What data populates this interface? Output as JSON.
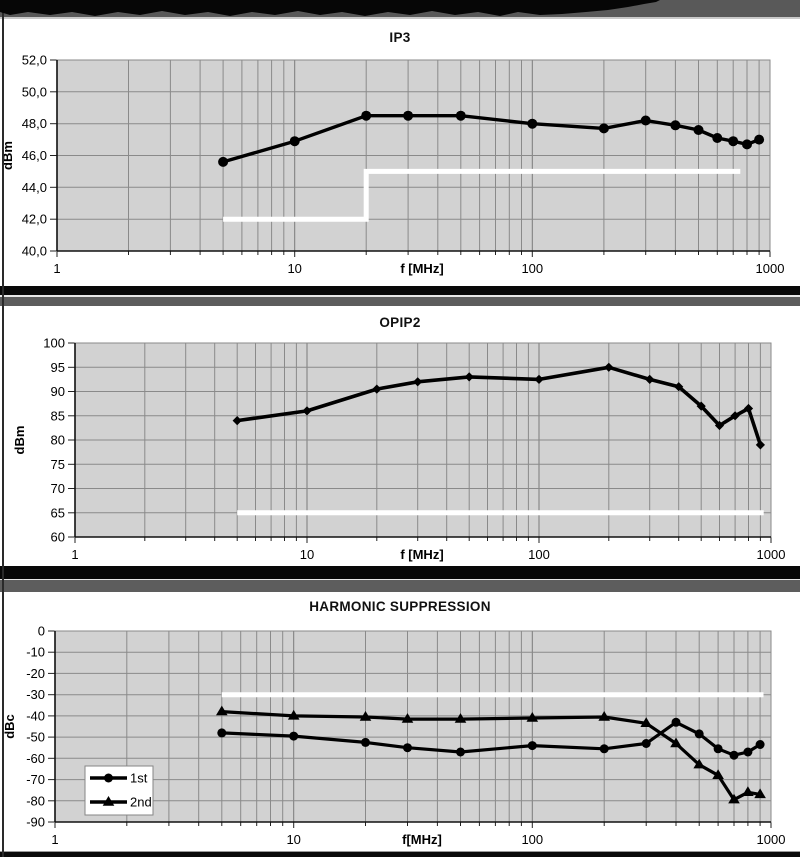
{
  "colors": {
    "plot_background": "#d2d2d2",
    "grid": "#8a8a8a",
    "series": "#000000",
    "limit_line": "#ffffff",
    "header_bar": "#595959",
    "separator_gray": "#5d5d5d",
    "separator_black": "#080808"
  },
  "chart_data": [
    {
      "type": "line",
      "title": "IP3",
      "xlabel": "f [MHz]",
      "ylabel": "dBm",
      "xscale": "log",
      "xlim": [
        1,
        1000
      ],
      "ylim": [
        40,
        52
      ],
      "ytick_step": 2,
      "ytick_labels": [
        "52,0",
        "50,0",
        "48,0",
        "46,0",
        "44,0",
        "42,0",
        "40,0"
      ],
      "xtick_values": [
        1,
        10,
        100,
        1000
      ],
      "xtick_labels": [
        "1",
        "10",
        "100",
        "1000"
      ],
      "grid": true,
      "x": [
        5,
        10,
        20,
        30,
        50,
        100,
        200,
        300,
        400,
        500,
        600,
        700,
        800,
        900
      ],
      "series": [
        {
          "name": "IP3",
          "marker": "circle",
          "values": [
            45.6,
            46.9,
            48.5,
            48.5,
            48.5,
            48.0,
            47.7,
            48.2,
            47.9,
            47.6,
            47.1,
            46.9,
            46.7,
            47.0
          ]
        }
      ],
      "limit_line": {
        "color": "#ffffff",
        "points": [
          [
            5,
            42
          ],
          [
            20,
            42
          ],
          [
            20,
            45
          ],
          [
            750,
            45
          ]
        ]
      },
      "legend": null
    },
    {
      "type": "line",
      "title": "OPIP2",
      "xlabel": "f [MHz]",
      "ylabel": "dBm",
      "xscale": "log",
      "xlim": [
        1,
        1000
      ],
      "ylim": [
        60,
        100
      ],
      "ytick_step": 5,
      "ytick_labels": [
        "100",
        "95",
        "90",
        "85",
        "80",
        "75",
        "70",
        "65",
        "60"
      ],
      "xtick_values": [
        1,
        10,
        100,
        1000
      ],
      "xtick_labels": [
        "1",
        "10",
        "100",
        "1000"
      ],
      "grid": true,
      "x": [
        5,
        10,
        20,
        30,
        50,
        100,
        200,
        300,
        400,
        500,
        600,
        700,
        800,
        900
      ],
      "series": [
        {
          "name": "OPIP2",
          "marker": "diamond",
          "values": [
            84,
            86,
            90.5,
            92,
            93,
            92.5,
            95,
            92.5,
            91,
            87,
            83,
            85,
            86.5,
            79
          ]
        }
      ],
      "limit_line": {
        "color": "#ffffff",
        "points": [
          [
            5,
            65
          ],
          [
            930,
            65
          ]
        ]
      },
      "legend": null
    },
    {
      "type": "line",
      "title": "HARMONIC SUPPRESSION",
      "xlabel": "f[MHz]",
      "ylabel": "dBc",
      "xscale": "log",
      "xlim": [
        1,
        1000
      ],
      "ylim": [
        -90,
        0
      ],
      "ytick_step": 10,
      "ytick_labels": [
        "0",
        "-10",
        "-20",
        "-30",
        "-40",
        "-50",
        "-60",
        "-70",
        "-80",
        "-90"
      ],
      "xtick_values": [
        1,
        10,
        100,
        1000
      ],
      "xtick_labels": [
        "1",
        "10",
        "100",
        "1000"
      ],
      "grid": true,
      "x": [
        5,
        10,
        20,
        30,
        50,
        100,
        200,
        300,
        400,
        500,
        600,
        700,
        800,
        900
      ],
      "series": [
        {
          "name": "1st",
          "marker": "circle",
          "values": [
            -48,
            -49.5,
            -52.5,
            -55,
            -57,
            -54,
            -55.5,
            -53,
            -43,
            -48.5,
            -55.5,
            -58.5,
            -57,
            -53.5
          ]
        },
        {
          "name": "2nd",
          "marker": "triangle",
          "values": [
            -38,
            -40,
            -40.5,
            -41.5,
            -41.5,
            -41,
            -40.5,
            -43.5,
            -53,
            -63,
            -68,
            -79.5,
            -76,
            -77
          ]
        }
      ],
      "limit_line": {
        "color": "#ffffff",
        "points": [
          [
            5,
            -30
          ],
          [
            930,
            -30
          ]
        ]
      },
      "legend": {
        "position": "bottom-left"
      }
    }
  ]
}
